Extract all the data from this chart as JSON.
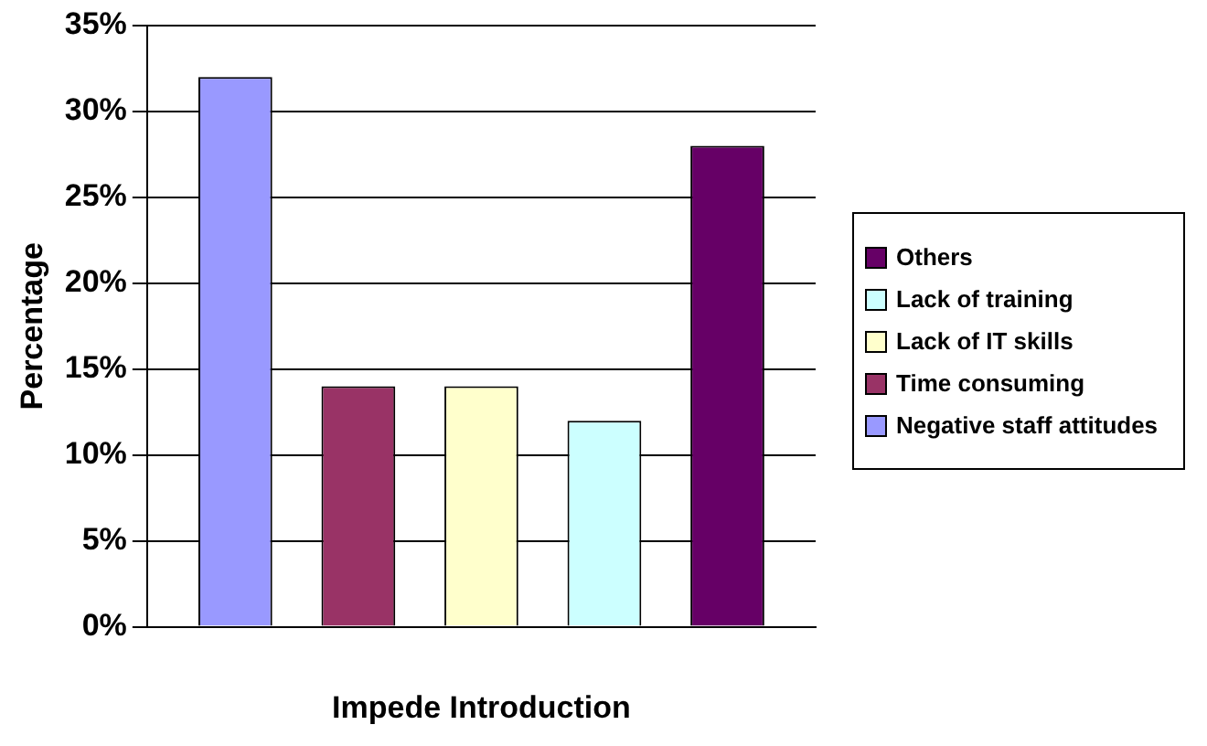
{
  "chart_data": {
    "type": "bar",
    "xlabel": "Impede Introduction",
    "ylabel": "Percentage",
    "categories": [
      null
    ],
    "series": [
      {
        "name": "Negative staff attitudes",
        "color": "#9999ff",
        "values": [
          32
        ]
      },
      {
        "name": "Time consuming",
        "color": "#993366",
        "values": [
          14
        ]
      },
      {
        "name": "Lack of IT skills",
        "color": "#ffffcc",
        "values": [
          14
        ]
      },
      {
        "name": "Lack of training",
        "color": "#ccffff",
        "values": [
          12
        ]
      },
      {
        "name": "Others",
        "color": "#660066",
        "values": [
          28
        ]
      }
    ],
    "ylim": [
      0,
      35
    ],
    "yticks": [
      {
        "value": 0,
        "label": "0%"
      },
      {
        "value": 5,
        "label": "5%"
      },
      {
        "value": 10,
        "label": "10%"
      },
      {
        "value": 15,
        "label": "15%"
      },
      {
        "value": 20,
        "label": "20%"
      },
      {
        "value": 25,
        "label": "25%"
      },
      {
        "value": 30,
        "label": "30%"
      },
      {
        "value": 35,
        "label": "35%"
      }
    ],
    "grid": "y",
    "legend": "right"
  }
}
